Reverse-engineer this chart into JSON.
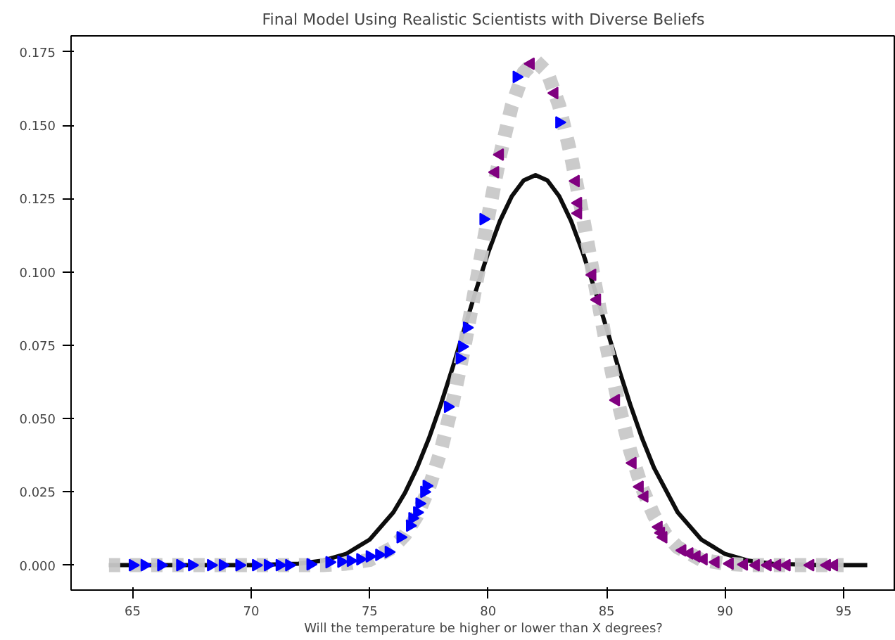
{
  "chart_data": {
    "type": "line",
    "title": "Final Model Using Realistic Scientists with Diverse Beliefs",
    "xlabel": "Will the temperature be higher or lower than X degrees?",
    "xlim": [
      62.4,
      97.2
    ],
    "ylim": [
      -0.0085,
      0.1805
    ],
    "xticks": [
      65,
      70,
      75,
      80,
      85,
      90,
      95
    ],
    "yticks": [
      {
        "value": 0,
        "label": "0.000"
      },
      {
        "value": 0.025,
        "label": "0.025"
      },
      {
        "value": 0.05,
        "label": "0.050"
      },
      {
        "value": 0.075,
        "label": "0.075"
      },
      {
        "value": 0.1,
        "label": "0.100"
      },
      {
        "value": 0.125,
        "label": "0.125"
      },
      {
        "value": 0.15,
        "label": "0.150"
      },
      {
        "value": 0.175,
        "label": "0.175"
      }
    ],
    "grid": false,
    "series": [
      {
        "color": "#000000",
        "line_style": "solid",
        "x": [
          64,
          70,
          72,
          73,
          74,
          75,
          76,
          76.5,
          77,
          77.5,
          78,
          78.5,
          79,
          79.5,
          80,
          80.5,
          81,
          81.5,
          82,
          82.5,
          83,
          83.5,
          84,
          84.5,
          85,
          85.5,
          86,
          86.5,
          87,
          88,
          89,
          90,
          91,
          92,
          94,
          96
        ],
        "values": [
          0,
          0,
          0.0005,
          0.0015,
          0.0038,
          0.0087,
          0.018,
          0.0248,
          0.0332,
          0.0432,
          0.0547,
          0.0673,
          0.0807,
          0.094,
          0.1065,
          0.1174,
          0.1258,
          0.1312,
          0.133,
          0.1312,
          0.1258,
          0.1174,
          0.1065,
          0.094,
          0.0807,
          0.0673,
          0.0547,
          0.0432,
          0.0332,
          0.018,
          0.0087,
          0.0038,
          0.0015,
          0.0005,
          0,
          0
        ]
      },
      {
        "color": "#c8c8c8",
        "line_style": "dashed",
        "x": [
          64,
          73,
          74,
          75,
          76,
          76.5,
          77,
          77.5,
          78,
          78.5,
          79,
          79.5,
          80,
          80.5,
          81,
          81.5,
          82,
          82.5,
          83,
          83.5,
          84,
          84.5,
          85,
          85.5,
          86,
          86.5,
          87,
          87.5,
          88,
          89,
          90,
          91,
          95
        ],
        "values": [
          0,
          0,
          0.0005,
          0.0018,
          0.0061,
          0.0104,
          0.0169,
          0.0262,
          0.0389,
          0.0552,
          0.0746,
          0.0963,
          0.1187,
          0.1396,
          0.1567,
          0.168,
          0.172,
          0.168,
          0.1567,
          0.1396,
          0.1187,
          0.0963,
          0.0746,
          0.0552,
          0.0389,
          0.0262,
          0.0169,
          0.0104,
          0.0061,
          0.0018,
          0.0005,
          0,
          0
        ]
      },
      {
        "type": "scatter",
        "color": "#0000ff",
        "marker": "triangle",
        "x": [
          65,
          65.5,
          66.2,
          67,
          67.5,
          68.3,
          68.8,
          69.5,
          70.2,
          70.7,
          71.2,
          71.6,
          72.5,
          73.3,
          73.8,
          74.2,
          74.6,
          75,
          75.4,
          75.8,
          76.3,
          76.7,
          76.8,
          77,
          77.1,
          77.3,
          77.4,
          78.3,
          78.8,
          78.9,
          79.1,
          79.8,
          81.2,
          83.0
        ],
        "values": [
          0,
          0,
          0,
          0,
          0,
          0,
          0,
          0,
          0,
          0,
          0,
          0,
          0.0003,
          0.001,
          0.0012,
          0.0015,
          0.002,
          0.003,
          0.0035,
          0.0045,
          0.0095,
          0.0135,
          0.016,
          0.018,
          0.021,
          0.025,
          0.027,
          0.054,
          0.0705,
          0.0745,
          0.081,
          0.118,
          0.1665,
          0.151
        ]
      },
      {
        "type": "scatter",
        "color": "#800080",
        "marker": "triangle",
        "x": [
          80.3,
          80.5,
          81.8,
          82.8,
          83.7,
          83.8,
          83.8,
          84.4,
          84.6,
          85.4,
          86.1,
          86.4,
          86.6,
          87.2,
          87.3,
          87.4,
          88.2,
          88.5,
          88.8,
          89.1,
          89.6,
          90.2,
          90.8,
          91.3,
          91.8,
          92.2,
          92.6,
          93.6,
          94.3,
          94.6
        ],
        "values": [
          0.134,
          0.14,
          0.171,
          0.161,
          0.131,
          0.1235,
          0.12,
          0.099,
          0.0905,
          0.0563,
          0.0348,
          0.0267,
          0.0234,
          0.013,
          0.011,
          0.0095,
          0.005,
          0.004,
          0.003,
          0.002,
          0.001,
          0.0005,
          0.0002,
          0,
          0,
          0,
          0,
          0,
          0,
          0
        ]
      }
    ]
  }
}
